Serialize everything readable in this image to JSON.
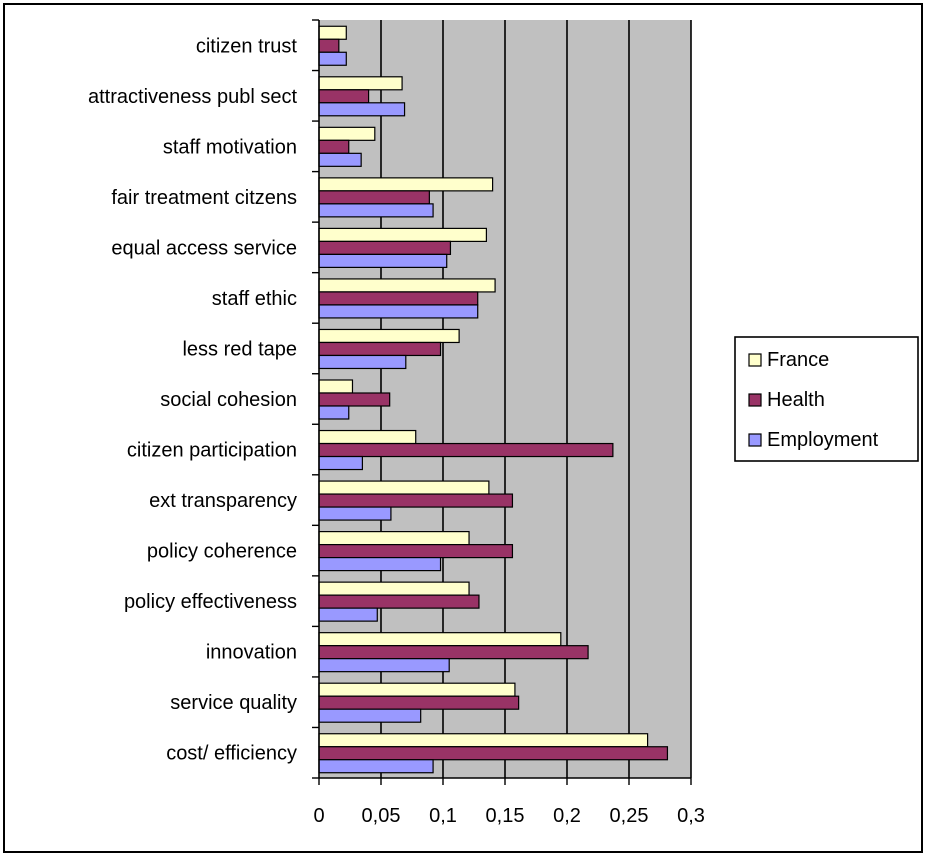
{
  "chart_data": {
    "type": "bar",
    "orientation": "horizontal",
    "categories": [
      "citizen trust",
      "attractiveness publ sect",
      "staff motivation",
      "fair treatment citzens",
      "equal access service",
      "staff ethic",
      "less red tape",
      "social cohesion",
      "citizen participation",
      "ext transparency",
      "policy coherence",
      "policy effectiveness",
      "innovation",
      "service quality",
      "cost/ efficiency"
    ],
    "series": [
      {
        "name": "France",
        "color": "#ffffcc",
        "values": [
          0.022,
          0.067,
          0.045,
          0.14,
          0.135,
          0.142,
          0.113,
          0.027,
          0.078,
          0.137,
          0.121,
          0.121,
          0.195,
          0.158,
          0.265
        ]
      },
      {
        "name": "Health",
        "color": "#993366",
        "values": [
          0.016,
          0.04,
          0.024,
          0.089,
          0.106,
          0.128,
          0.098,
          0.057,
          0.237,
          0.156,
          0.156,
          0.129,
          0.217,
          0.161,
          0.281
        ]
      },
      {
        "name": "Employment",
        "color": "#9999ff",
        "values": [
          0.022,
          0.069,
          0.034,
          0.092,
          0.103,
          0.128,
          0.07,
          0.024,
          0.035,
          0.058,
          0.098,
          0.047,
          0.105,
          0.082,
          0.092
        ]
      }
    ],
    "xlim": [
      0,
      0.3
    ],
    "xticks": [
      "0",
      "0,05",
      "0,1",
      "0,15",
      "0,2",
      "0,25",
      "0,3"
    ],
    "plot_background": "#c0c0c0",
    "grid": true,
    "legend_position": "right"
  }
}
